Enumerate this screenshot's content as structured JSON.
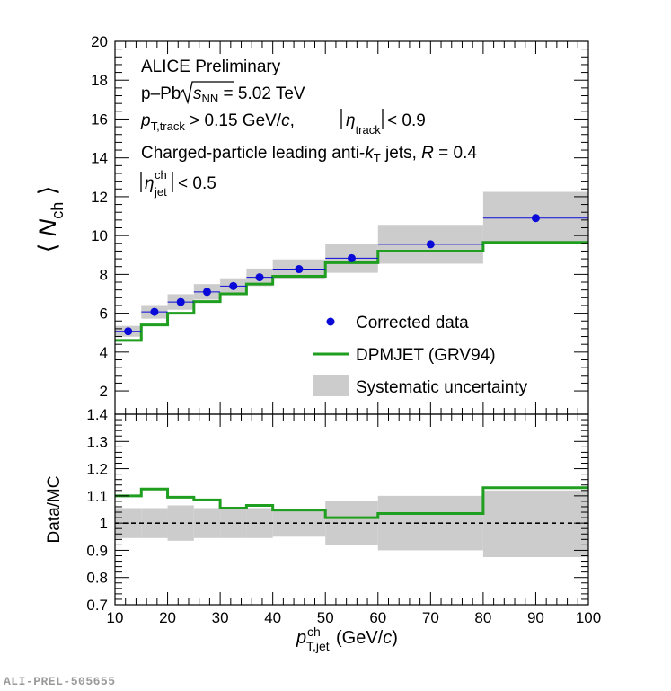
{
  "colors": {
    "data": "#0a0ad8",
    "model": "#1f9e1f",
    "syst": "#cccccc",
    "unity": "#000000"
  },
  "chart_data": [
    {
      "type": "line",
      "panel": "top",
      "ylabel_sym": "N",
      "ylabel_sub": "ch",
      "ylim": [
        0.8,
        20
      ],
      "yticks": [
        2,
        4,
        6,
        8,
        10,
        12,
        14,
        16,
        18,
        20
      ],
      "bins": [
        [
          10,
          15
        ],
        [
          15,
          20
        ],
        [
          20,
          25
        ],
        [
          25,
          30
        ],
        [
          30,
          35
        ],
        [
          35,
          40
        ],
        [
          40,
          50
        ],
        [
          50,
          60
        ],
        [
          60,
          80
        ],
        [
          80,
          100
        ]
      ],
      "x_centers": [
        12.5,
        17.5,
        22.5,
        27.5,
        32.5,
        37.5,
        45,
        55,
        70,
        90
      ],
      "series": [
        {
          "name": "Corrected data",
          "values": [
            5.07,
            6.07,
            6.58,
            7.1,
            7.4,
            7.85,
            8.27,
            8.83,
            9.55,
            10.9
          ],
          "syst": [
            0.28,
            0.35,
            0.4,
            0.4,
            0.4,
            0.45,
            0.5,
            0.75,
            1.0,
            1.35
          ]
        },
        {
          "name": "DPMJET (GRV94)",
          "values": [
            4.6,
            5.4,
            6.0,
            6.6,
            7.0,
            7.5,
            7.9,
            8.6,
            9.2,
            9.65
          ]
        }
      ],
      "legend": {
        "data": "Corrected data",
        "model": "DPMJET (GRV94)",
        "syst": "Systematic uncertainty",
        "position": "lower-right"
      },
      "labels": {
        "collab": "ALICE Preliminary",
        "system": "p–Pb",
        "sqrt_sym": "s",
        "sqrt_sub": "NN",
        "energy": " = 5.02 TeV",
        "pt_sym": "p",
        "pt_sub": "T,track",
        "pt_cut": " > 0.15 GeV/",
        "pt_unit_c": "c",
        "comma": ", ",
        "eta_sym": "η",
        "eta_sub": "track",
        "eta_cut": "< 0.9",
        "jets_a": "Charged-particle leading anti-",
        "jets_k": "k",
        "jets_ksub": "T",
        "jets_b": " jets, ",
        "jets_R": "R",
        "jets_c": " = 0.4",
        "jeteta_sym": "η",
        "jeteta_sup": "ch",
        "jeteta_sub": "jet",
        "jeteta_cut": "< 0.5"
      }
    },
    {
      "type": "line",
      "panel": "bottom",
      "ylabel": "Data/MC",
      "ylim": [
        0.7,
        1.4
      ],
      "yticks": [
        "0.7",
        "0.8",
        "0.9",
        "1",
        "1.1",
        "1.2",
        "1.3",
        "1.4"
      ],
      "xlim": [
        10,
        100
      ],
      "xticks": [
        "10",
        "20",
        "30",
        "40",
        "50",
        "60",
        "70",
        "80",
        "90",
        "100"
      ],
      "xlabel_sym": "p",
      "xlabel_sup": "ch",
      "xlabel_sub": "T,jet",
      "xlabel_unit_a": " (GeV/",
      "xlabel_unit_c": "c",
      "xlabel_unit_b": ")",
      "bins": [
        [
          10,
          15
        ],
        [
          15,
          20
        ],
        [
          20,
          25
        ],
        [
          25,
          30
        ],
        [
          30,
          35
        ],
        [
          35,
          40
        ],
        [
          40,
          50
        ],
        [
          50,
          60
        ],
        [
          60,
          80
        ],
        [
          80,
          100
        ]
      ],
      "series": [
        {
          "name": "Data/MC",
          "values": [
            1.1,
            1.125,
            1.095,
            1.085,
            1.055,
            1.065,
            1.048,
            1.02,
            1.035,
            1.13
          ]
        },
        {
          "name": "Systematic uncertainty",
          "low": [
            0.945,
            0.945,
            0.935,
            0.945,
            0.945,
            0.945,
            0.95,
            0.92,
            0.9,
            0.875
          ],
          "high": [
            1.055,
            1.055,
            1.065,
            1.055,
            1.055,
            1.055,
            1.05,
            1.08,
            1.1,
            1.12
          ]
        }
      ],
      "reference_line": 1.0
    }
  ],
  "footer": "ALI-PREL-505655"
}
